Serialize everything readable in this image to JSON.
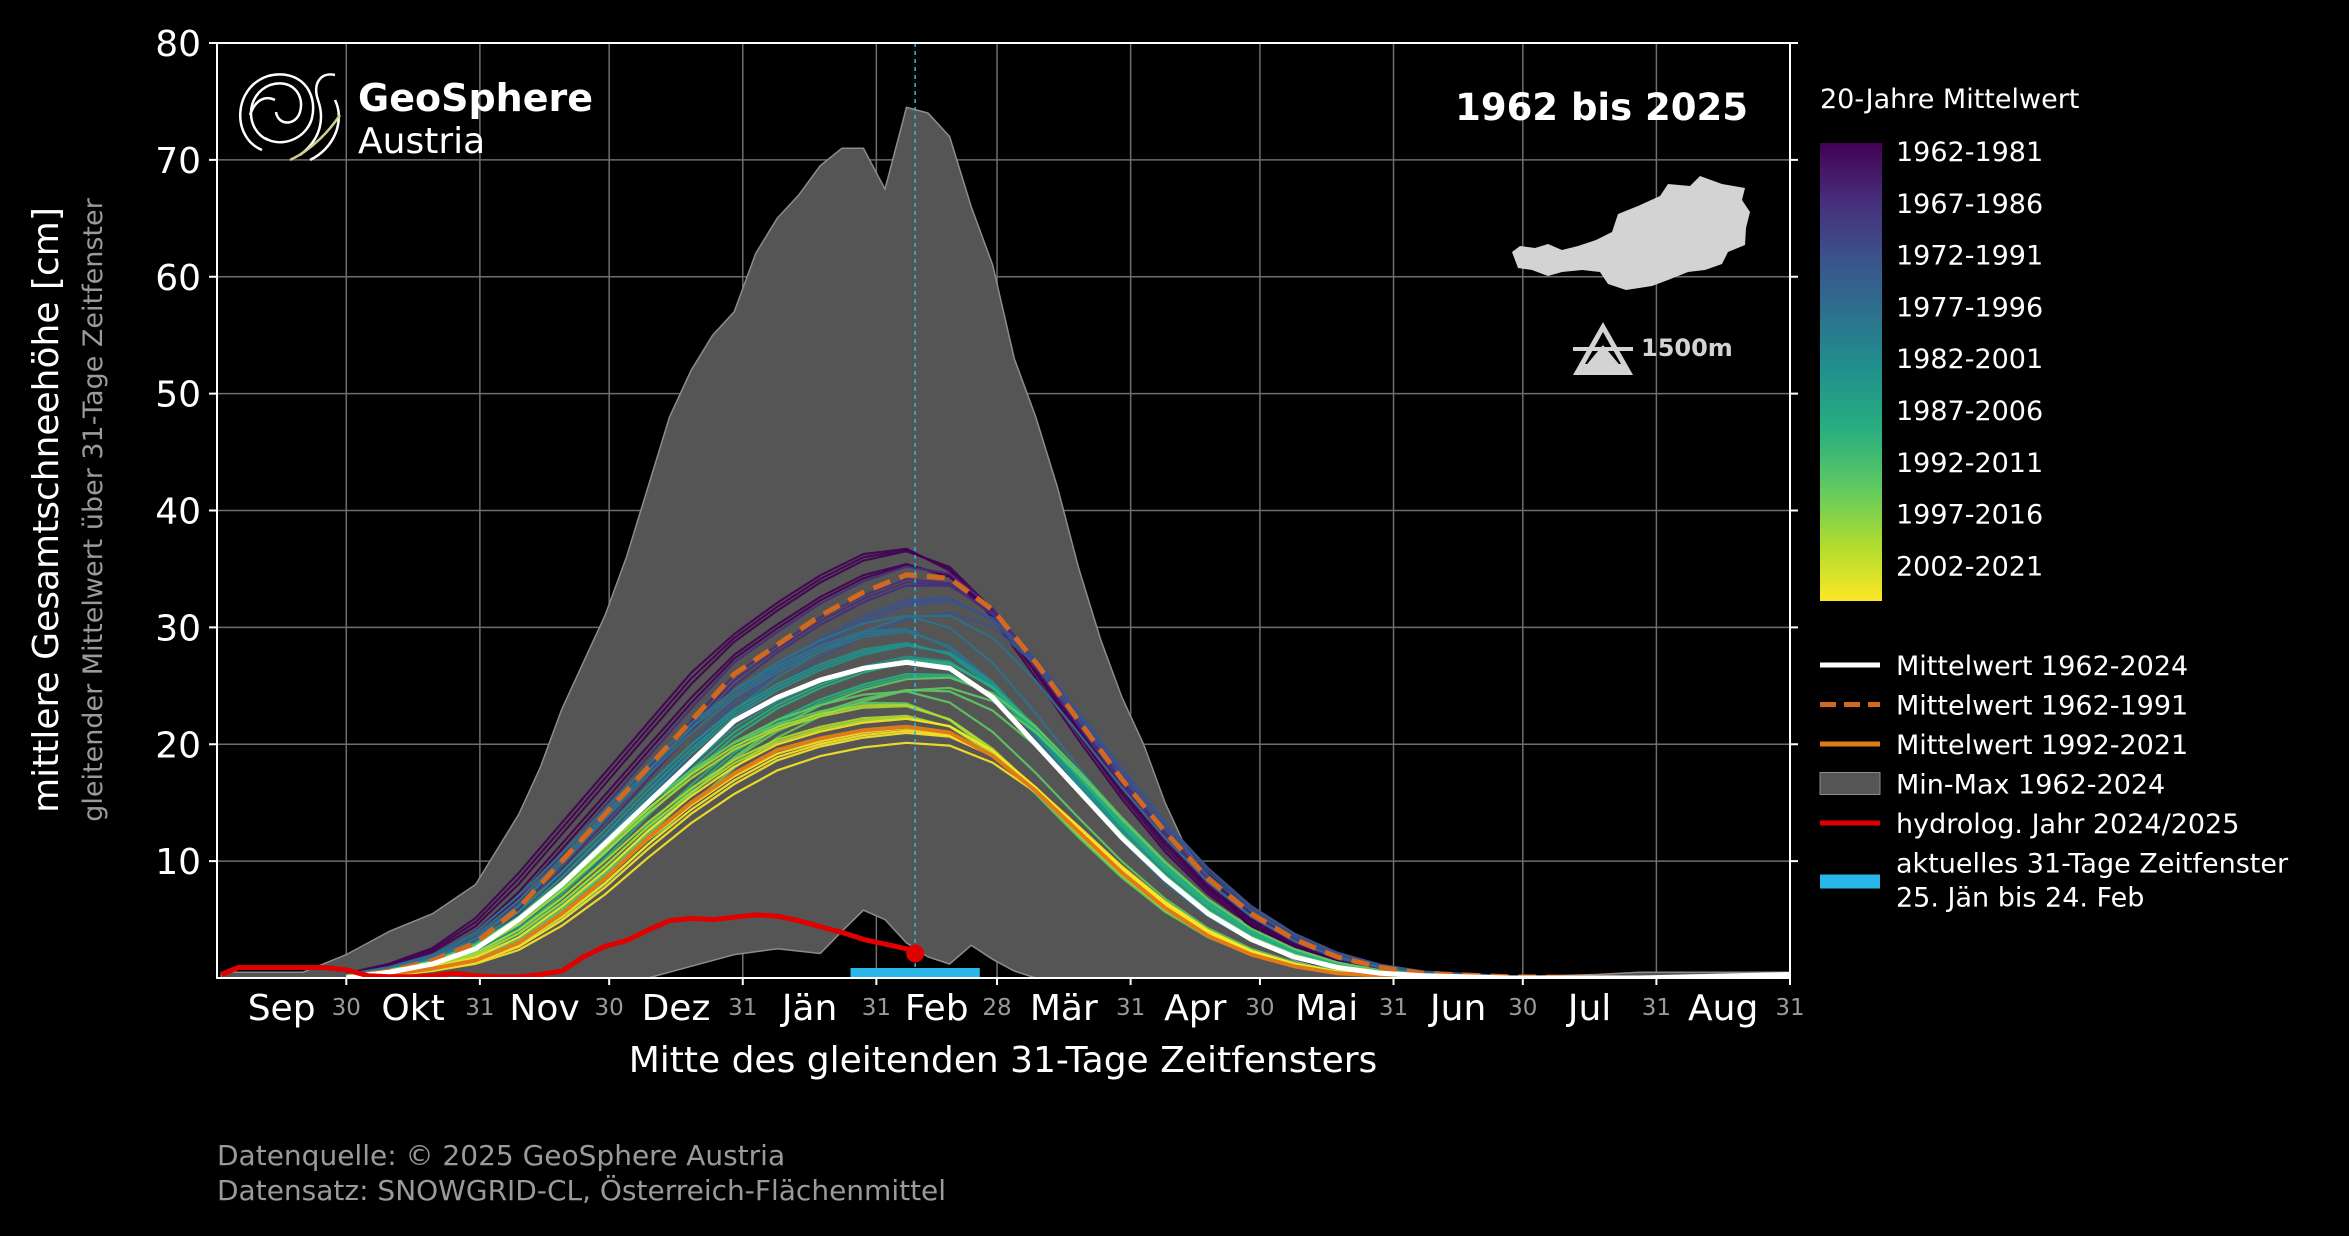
{
  "chart_data": {
    "type": "area",
    "title": "",
    "period_label": "1962 bis 2025",
    "ylabel": "mittlere Gesamtschneehöhe [cm]",
    "ylabel_sub": "gleitender Mittelwert über 31-Tage Zeitfenster",
    "xlabel": "Mitte des gleitenden 31-Tage Zeitfensters",
    "ylim": [
      0,
      80
    ],
    "yticks": [
      10,
      20,
      30,
      40,
      50,
      60,
      70,
      80
    ],
    "grid": true,
    "months": [
      "Sep",
      "Okt",
      "Nov",
      "Dez",
      "Jän",
      "Feb",
      "Mär",
      "Apr",
      "Mai",
      "Jun",
      "Jul",
      "Aug"
    ],
    "month_lengths": [
      30,
      31,
      30,
      31,
      31,
      28,
      31,
      30,
      31,
      30,
      31,
      31
    ],
    "x_unit": "day of hydrological year (1 = 1 Sep)",
    "colorbar_title": "20-Jahre Mittelwert",
    "colorbar_labels": [
      "1962-1981",
      "1967-1986",
      "1972-1991",
      "1977-1996",
      "1982-2001",
      "1987-2006",
      "1992-2011",
      "1997-2016",
      "2002-2021"
    ],
    "colorbar_colors": [
      "#440154",
      "#472d7b",
      "#3b528b",
      "#2c728e",
      "#21918c",
      "#28ae80",
      "#5ec962",
      "#addc30",
      "#fde725"
    ],
    "elevation_label": "1500m",
    "legend": [
      {
        "label": "Mittelwert 1962-2024",
        "color": "#ffffff",
        "style": "solid"
      },
      {
        "label": "Mittelwert 1962-1991",
        "color": "#d2691e",
        "style": "dashed"
      },
      {
        "label": "Mittelwert 1992-2021",
        "color": "#e07b1a",
        "style": "solid"
      },
      {
        "label": "Min-Max 1962-2024",
        "color": "#555555",
        "style": "patch"
      },
      {
        "label": "hydrolog. Jahr 2024/2025",
        "color": "#e00000",
        "style": "solid"
      },
      {
        "label": "aktuelles 31-Tage Zeitfenster",
        "label2": "25. Jän bis 24. Feb",
        "color": "#29b6e8",
        "style": "patch"
      }
    ],
    "current_window": {
      "start_day": 147,
      "end_day": 177,
      "center_day": 162
    },
    "series": [
      {
        "name": "Max 1962-2024",
        "x": [
          1,
          20,
          30,
          40,
          50,
          60,
          70,
          75,
          80,
          85,
          90,
          95,
          100,
          105,
          110,
          115,
          120,
          125,
          130,
          135,
          140,
          145,
          150,
          155,
          160,
          165,
          170,
          175,
          180,
          185,
          190,
          195,
          200,
          205,
          210,
          215,
          220,
          225,
          230,
          235,
          240,
          245,
          250,
          255,
          260,
          270,
          280,
          290,
          300,
          310,
          320,
          330,
          365
        ],
        "y": [
          0.5,
          0.5,
          2,
          4,
          5.5,
          8,
          14,
          18,
          23,
          27,
          31,
          36,
          42,
          48,
          52,
          55,
          57,
          62,
          65,
          67,
          69.5,
          71,
          71,
          67.5,
          74.5,
          74,
          72,
          66,
          61,
          53,
          48,
          42,
          35,
          29,
          24,
          20,
          15,
          11,
          8.5,
          6,
          4,
          2.5,
          1.5,
          1,
          0.5,
          0.3,
          0.2,
          0.1,
          0.1,
          0.2,
          0.3,
          0.5,
          0.5
        ]
      },
      {
        "name": "Min 1962-2024",
        "x": [
          1,
          100,
          110,
          120,
          130,
          135,
          140,
          145,
          150,
          155,
          160,
          165,
          170,
          175,
          180,
          185,
          190,
          200,
          365
        ],
        "y": [
          0,
          0,
          1,
          2,
          2.5,
          2.3,
          2.1,
          4,
          5.8,
          5,
          3,
          1.8,
          1.2,
          2.8,
          1.6,
          0.6,
          0,
          0,
          0
        ]
      },
      {
        "name": "Mittelwert 1962-2024",
        "x": [
          30,
          40,
          50,
          60,
          70,
          80,
          90,
          100,
          110,
          120,
          130,
          140,
          150,
          160,
          170,
          180,
          190,
          200,
          210,
          220,
          230,
          240,
          250,
          260,
          270,
          280,
          300,
          330,
          365
        ],
        "y": [
          0,
          0.5,
          1.2,
          2.5,
          5,
          8,
          11.5,
          15,
          18.5,
          22,
          24,
          25.5,
          26.5,
          27,
          26.5,
          24,
          20,
          16,
          12,
          8.5,
          5.5,
          3.3,
          1.8,
          0.9,
          0.4,
          0.2,
          0,
          0,
          0.3
        ]
      },
      {
        "name": "Mittelwert 1962-1991",
        "x": [
          30,
          40,
          50,
          60,
          70,
          80,
          90,
          100,
          110,
          120,
          130,
          140,
          150,
          160,
          170,
          180,
          190,
          200,
          210,
          220,
          230,
          240,
          250,
          260,
          270,
          280,
          300,
          330,
          365
        ],
        "y": [
          0,
          0.6,
          1.5,
          3,
          6,
          10,
          14,
          18,
          22,
          26,
          28.5,
          31,
          33,
          34.5,
          34.2,
          31.5,
          27,
          22,
          17,
          12.5,
          8.5,
          5.5,
          3.3,
          1.8,
          0.9,
          0.4,
          0.1,
          0,
          0.3
        ]
      },
      {
        "name": "Mittelwert 1992-2021",
        "x": [
          30,
          40,
          50,
          60,
          70,
          80,
          90,
          100,
          110,
          120,
          130,
          140,
          150,
          160,
          170,
          180,
          190,
          200,
          210,
          220,
          230,
          240,
          250,
          260,
          270,
          280,
          300,
          330,
          365
        ],
        "y": [
          0,
          0.3,
          0.8,
          1.5,
          3,
          5.5,
          8.5,
          12,
          15,
          17.5,
          19.5,
          20.5,
          21.2,
          21.5,
          21,
          19,
          16,
          12.5,
          9,
          6,
          3.6,
          2,
          1,
          0.4,
          0.2,
          0.1,
          0,
          0,
          0.2
        ]
      },
      {
        "name": "hydrolog. Jahr 2024/2025",
        "x": [
          1,
          5,
          10,
          15,
          20,
          25,
          30,
          35,
          40,
          45,
          50,
          55,
          60,
          65,
          70,
          75,
          80,
          85,
          90,
          95,
          100,
          105,
          110,
          115,
          120,
          125,
          130,
          135,
          140,
          145,
          150,
          155,
          160,
          162
        ],
        "y": [
          0.3,
          0.9,
          0.9,
          0.9,
          0.9,
          0.9,
          0.7,
          0.2,
          0.1,
          0.1,
          0.2,
          0.4,
          0.2,
          0.1,
          0.1,
          0.3,
          0.6,
          1.8,
          2.7,
          3.2,
          4.1,
          4.9,
          5.1,
          5,
          5.2,
          5.4,
          5.3,
          4.9,
          4.4,
          3.9,
          3.3,
          2.9,
          2.5,
          2.1
        ]
      }
    ]
  },
  "logo": {
    "name_line1": "GeoSphere",
    "name_line2": "Austria"
  },
  "footer": {
    "source": "Datenquelle: © 2025 GeoSphere Austria",
    "dataset": "Datensatz: SNOWGRID-CL, Österreich-Flächenmittel"
  }
}
